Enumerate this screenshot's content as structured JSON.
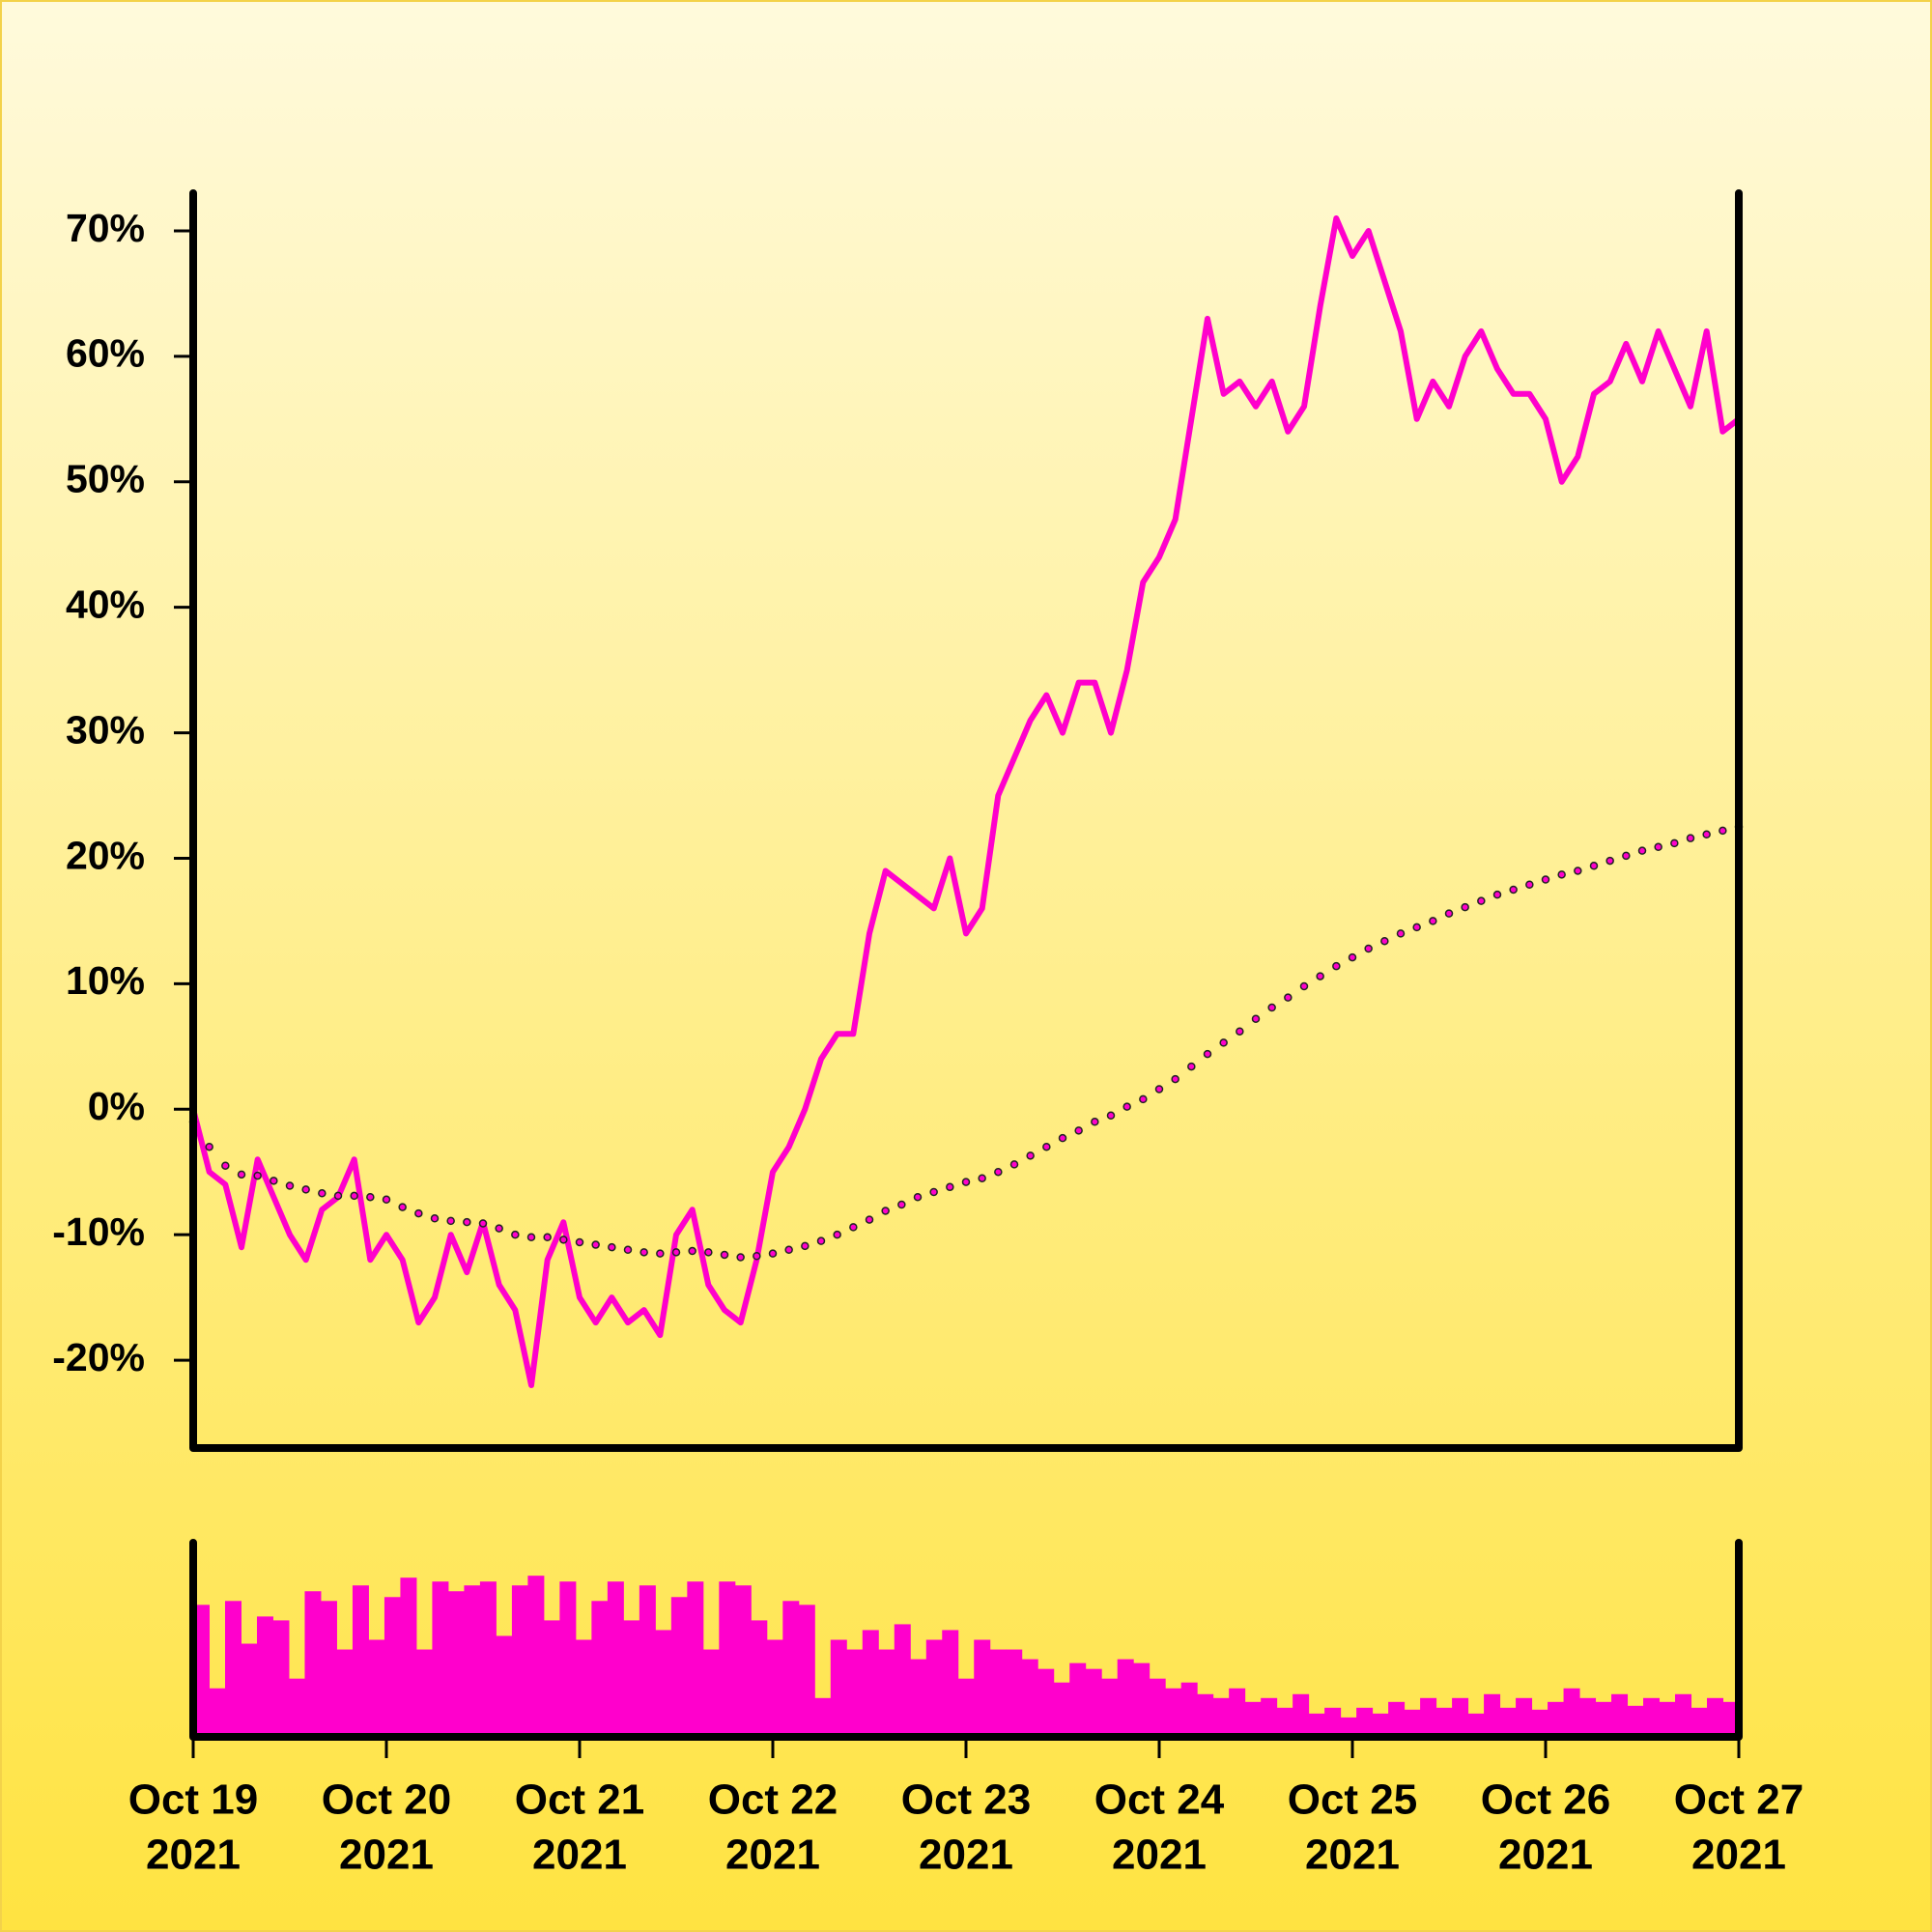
{
  "chart_data": [
    {
      "type": "line",
      "ylim": [
        -27,
        73
      ],
      "yticks": [
        {
          "value": -20,
          "label": "-20%"
        },
        {
          "value": -10,
          "label": "-10%"
        },
        {
          "value": 0,
          "label": "0%"
        },
        {
          "value": 10,
          "label": "10%"
        },
        {
          "value": 20,
          "label": "20%"
        },
        {
          "value": 30,
          "label": "30%"
        },
        {
          "value": 40,
          "label": "40%"
        },
        {
          "value": 50,
          "label": "50%"
        },
        {
          "value": 60,
          "label": "60%"
        },
        {
          "value": 70,
          "label": "70%"
        }
      ],
      "series": [
        {
          "color": "#ff00cc",
          "style": "solid",
          "values": [
            0,
            -5,
            -6,
            -11,
            -4,
            -7,
            -10,
            -12,
            -8,
            -7,
            -4,
            -12,
            -10,
            -12,
            -17,
            -15,
            -10,
            -13,
            -9,
            -14,
            -16,
            -22,
            -12,
            -9,
            -15,
            -17,
            -15,
            -17,
            -16,
            -18,
            -10,
            -8,
            -14,
            -16,
            -17,
            -12,
            -5,
            -3,
            0,
            4,
            6,
            6,
            14,
            19,
            18,
            17,
            16,
            20,
            14,
            16,
            25,
            28,
            31,
            33,
            30,
            34,
            34,
            30,
            35,
            42,
            44,
            47,
            55,
            63,
            57,
            58,
            56,
            58,
            54,
            56,
            64,
            71,
            68,
            70,
            66,
            62,
            55,
            58,
            56,
            60,
            62,
            59,
            57,
            57,
            55,
            50,
            52,
            57,
            58,
            61,
            58,
            62,
            59,
            56,
            62,
            54,
            55
          ]
        },
        {
          "color": "#ff00cc",
          "style": "dotted",
          "values": [
            -1,
            -3,
            -4.5,
            -5.2,
            -5.3,
            -5.7,
            -6.1,
            -6.4,
            -6.7,
            -6.9,
            -6.9,
            -7.0,
            -7.2,
            -7.8,
            -8.3,
            -8.7,
            -8.9,
            -9.0,
            -9.1,
            -9.5,
            -10.0,
            -10.2,
            -10.2,
            -10.4,
            -10.6,
            -10.8,
            -11.0,
            -11.2,
            -11.4,
            -11.5,
            -11.4,
            -11.3,
            -11.4,
            -11.6,
            -11.8,
            -11.7,
            -11.5,
            -11.2,
            -10.9,
            -10.5,
            -10.0,
            -9.4,
            -8.8,
            -8.1,
            -7.6,
            -7.0,
            -6.6,
            -6.2,
            -5.8,
            -5.5,
            -5.0,
            -4.4,
            -3.7,
            -3.0,
            -2.3,
            -1.7,
            -1.0,
            -0.5,
            0.2,
            0.8,
            1.6,
            2.4,
            3.4,
            4.4,
            5.3,
            6.2,
            7.2,
            8.1,
            8.9,
            9.8,
            10.6,
            11.4,
            12.1,
            12.8,
            13.4,
            14.0,
            14.5,
            15.0,
            15.6,
            16.1,
            16.6,
            17.1,
            17.5,
            17.9,
            18.3,
            18.7,
            19.0,
            19.4,
            19.8,
            20.2,
            20.6,
            20.9,
            21.2,
            21.6,
            21.9,
            22.2,
            22.5
          ]
        }
      ]
    },
    {
      "type": "bar",
      "color": "#ff00cc",
      "ylim": [
        0,
        100
      ],
      "values": [
        68,
        25,
        70,
        48,
        62,
        60,
        30,
        75,
        70,
        45,
        78,
        50,
        72,
        82,
        45,
        80,
        75,
        78,
        80,
        52,
        78,
        83,
        60,
        80,
        50,
        70,
        80,
        60,
        78,
        55,
        72,
        80,
        45,
        80,
        78,
        60,
        50,
        70,
        68,
        20,
        50,
        45,
        55,
        45,
        58,
        40,
        50,
        55,
        30,
        50,
        45,
        45,
        40,
        35,
        28,
        38,
        35,
        30,
        40,
        38,
        30,
        25,
        28,
        22,
        20,
        25,
        18,
        20,
        15,
        22,
        12,
        15,
        10,
        15,
        12,
        18,
        14,
        20,
        15,
        20,
        12,
        22,
        15,
        20,
        14,
        18,
        25,
        20,
        18,
        22,
        16,
        20,
        18,
        22,
        15,
        20,
        18
      ],
      "x_labels": [
        [
          "Oct 19",
          "2021"
        ],
        [
          "Oct 20",
          "2021"
        ],
        [
          "Oct 21",
          "2021"
        ],
        [
          "Oct 22",
          "2021"
        ],
        [
          "Oct 23",
          "2021"
        ],
        [
          "Oct 24",
          "2021"
        ],
        [
          "Oct 25",
          "2021"
        ],
        [
          "Oct 26",
          "2021"
        ],
        [
          "Oct 27",
          "2021"
        ]
      ]
    }
  ]
}
